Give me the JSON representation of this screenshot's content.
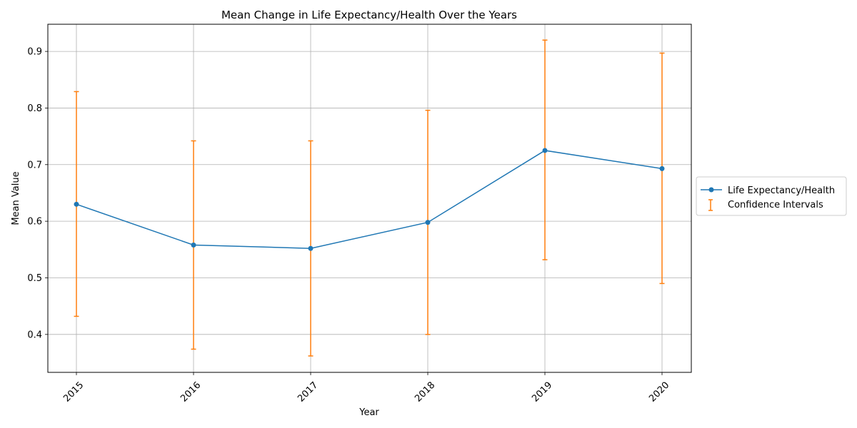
{
  "chart_data": {
    "type": "line",
    "title": "Mean Change in Life Expectancy/Health Over the Years",
    "xlabel": "Year",
    "ylabel": "Mean Value",
    "categories": [
      "2015",
      "2016",
      "2017",
      "2018",
      "2019",
      "2020"
    ],
    "series": [
      {
        "name": "Life Expectancy/Health",
        "values": [
          0.63,
          0.558,
          0.552,
          0.598,
          0.725,
          0.693
        ],
        "color": "#1f77b4"
      }
    ],
    "error_bars": {
      "name": "Confidence Intervals",
      "color": "#ff7f0e",
      "lower": [
        0.432,
        0.374,
        0.362,
        0.4,
        0.532,
        0.49
      ],
      "upper": [
        0.829,
        0.742,
        0.742,
        0.796,
        0.92,
        0.897
      ]
    },
    "ylim": [
      0.333,
      0.948
    ],
    "yticks": [
      "0.4",
      "0.5",
      "0.6",
      "0.7",
      "0.8",
      "0.9"
    ],
    "grid": true,
    "legend_position": "center-right outside"
  }
}
